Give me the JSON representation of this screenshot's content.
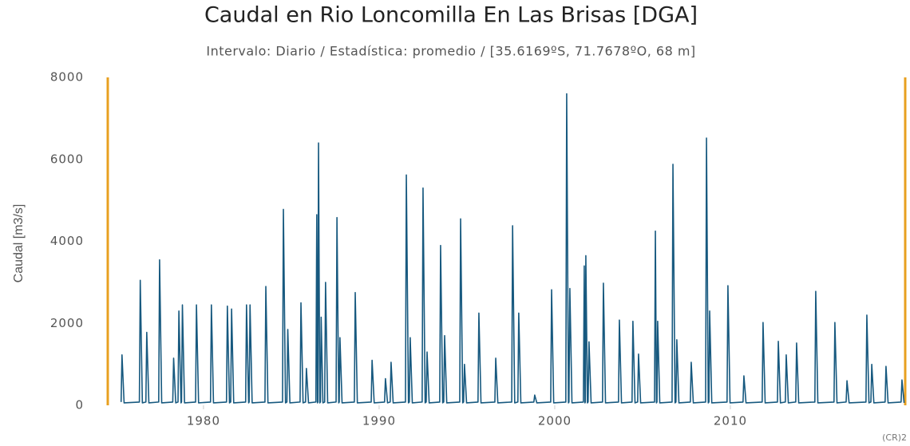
{
  "chart_data": {
    "type": "line",
    "title": "Caudal en Rio Loncomilla En Las Brisas [DGA]",
    "subtitle": "Intervalo: Diario / Estadística: promedio / [35.6169ºS, 71.7678ºO, 68 m]",
    "ylabel": "Caudal [m3/s]",
    "credit": "(CR)2",
    "xlim": [
      1974.55,
      2020
    ],
    "ylim": [
      0,
      8000
    ],
    "xticks": [
      1980,
      1990,
      2000,
      2010
    ],
    "yticks": [
      0,
      2000,
      4000,
      6000,
      8000
    ],
    "grid": false,
    "x": [
      1975.31,
      1975.36,
      1975.48,
      1976.35,
      1976.4,
      1976.52,
      1976.72,
      1976.77,
      1976.89,
      1977.45,
      1977.5,
      1977.62,
      1978.25,
      1978.3,
      1978.42,
      1978.55,
      1978.6,
      1978.72,
      1978.75,
      1978.8,
      1978.92,
      1979.55,
      1979.6,
      1979.72,
      1980.4,
      1980.45,
      1980.57,
      1981.31,
      1981.36,
      1981.48,
      1981.55,
      1981.6,
      1981.72,
      1982.4,
      1982.45,
      1982.57,
      1982.6,
      1982.65,
      1982.77,
      1983.5,
      1983.55,
      1983.67,
      1984.5,
      1984.55,
      1984.67,
      1984.75,
      1984.8,
      1984.92,
      1985.5,
      1985.55,
      1985.67,
      1985.81,
      1985.86,
      1985.98,
      1986.4,
      1986.45,
      1986.49,
      1986.51,
      1986.55,
      1986.62,
      1986.66,
      1986.7,
      1986.8,
      1986.9,
      1986.95,
      1987.07,
      1987.55,
      1987.6,
      1987.7,
      1987.73,
      1987.77,
      1987.89,
      1988.59,
      1988.64,
      1988.76,
      1989.55,
      1989.6,
      1989.72,
      1990.31,
      1990.36,
      1990.48,
      1990.63,
      1990.68,
      1990.8,
      1991.5,
      1991.55,
      1991.67,
      1991.72,
      1991.77,
      1991.89,
      1992.45,
      1992.5,
      1992.62,
      1992.68,
      1992.73,
      1992.85,
      1993.45,
      1993.5,
      1993.62,
      1993.68,
      1993.73,
      1993.85,
      1994.59,
      1994.64,
      1994.76,
      1994.81,
      1994.86,
      1994.98,
      1995.63,
      1995.68,
      1995.8,
      1996.59,
      1996.64,
      1996.76,
      1997.55,
      1997.6,
      1997.72,
      1997.9,
      1997.95,
      1998.07,
      1998.81,
      1998.86,
      1998.98,
      1999.77,
      1999.82,
      1999.94,
      2000.63,
      2000.68,
      2000.78,
      2000.81,
      2000.86,
      2000.98,
      2001.63,
      2001.68,
      2001.72,
      2001.74,
      2001.77,
      2001.86,
      2001.9,
      2001.95,
      2002.07,
      2002.72,
      2002.77,
      2002.89,
      2003.63,
      2003.68,
      2003.8,
      2004.4,
      2004.45,
      2004.57,
      2004.72,
      2004.77,
      2004.89,
      2005.68,
      2005.73,
      2005.79,
      2005.82,
      2005.86,
      2005.98,
      2006.68,
      2006.73,
      2006.85,
      2006.9,
      2006.95,
      2007.07,
      2007.72,
      2007.77,
      2007.89,
      2008.59,
      2008.64,
      2008.74,
      2008.78,
      2008.82,
      2008.94,
      2009.81,
      2009.86,
      2009.98,
      2010.72,
      2010.77,
      2010.89,
      2011.81,
      2011.86,
      2011.98,
      2012.68,
      2012.73,
      2012.85,
      2013.13,
      2013.18,
      2013.3,
      2013.72,
      2013.77,
      2013.89,
      2014.81,
      2014.86,
      2014.98,
      2015.9,
      2015.95,
      2016.07,
      2016.59,
      2016.64,
      2016.76,
      2017.72,
      2017.77,
      2017.89,
      2018.0,
      2018.05,
      2018.17,
      2018.81,
      2018.86,
      2018.98,
      2019.72,
      2019.77,
      2019.89
    ],
    "series": [
      {
        "name": "Caudal",
        "color": "#17597f",
        "values": [
          80,
          1230,
          60,
          80,
          3050,
          60,
          80,
          1780,
          60,
          80,
          3550,
          60,
          80,
          1150,
          60,
          80,
          2300,
          60,
          80,
          2450,
          60,
          80,
          2450,
          60,
          80,
          2450,
          60,
          80,
          2420,
          60,
          80,
          2350,
          60,
          80,
          2450,
          60,
          80,
          2450,
          60,
          80,
          2900,
          60,
          80,
          4780,
          60,
          80,
          1850,
          60,
          80,
          2500,
          60,
          80,
          900,
          60,
          80,
          4650,
          60,
          80,
          6400,
          60,
          80,
          2150,
          60,
          80,
          3000,
          60,
          80,
          4580,
          60,
          80,
          1650,
          60,
          80,
          2750,
          60,
          80,
          1100,
          60,
          80,
          650,
          60,
          80,
          1050,
          60,
          80,
          5620,
          60,
          80,
          1650,
          60,
          80,
          5300,
          60,
          80,
          1300,
          60,
          80,
          3900,
          60,
          80,
          1700,
          60,
          80,
          4550,
          60,
          80,
          1000,
          60,
          80,
          2250,
          60,
          80,
          1150,
          60,
          80,
          4380,
          60,
          80,
          2250,
          60,
          80,
          250,
          60,
          80,
          2820,
          60,
          80,
          7600,
          60,
          80,
          2850,
          60,
          80,
          3400,
          60,
          80,
          3650,
          60,
          80,
          1550,
          60,
          80,
          2980,
          60,
          80,
          2080,
          60,
          80,
          2050,
          60,
          80,
          1250,
          60,
          80,
          4250,
          60,
          80,
          2050,
          60,
          80,
          5880,
          60,
          80,
          1600,
          60,
          80,
          1050,
          60,
          80,
          6520,
          60,
          80,
          2300,
          60,
          80,
          2920,
          60,
          80,
          720,
          60,
          80,
          2020,
          60,
          80,
          1560,
          60,
          80,
          1230,
          60,
          80,
          1520,
          60,
          80,
          2780,
          60,
          80,
          2020,
          60,
          80,
          600,
          60,
          80,
          2200,
          60,
          80,
          1000,
          60,
          80,
          950,
          60,
          80,
          620,
          60
        ]
      }
    ]
  }
}
